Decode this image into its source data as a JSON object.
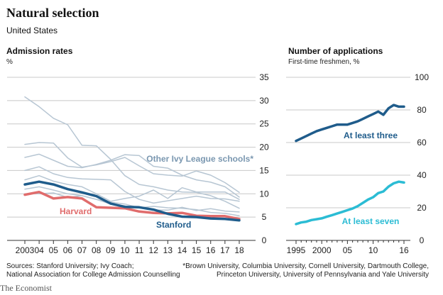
{
  "header": {
    "title": "Natural selection",
    "subtitle": "United States"
  },
  "left_panel": {
    "title": "Admission rates",
    "unit": "%"
  },
  "right_panel": {
    "title": "Number of applications",
    "unit": "First-time freshmen, %"
  },
  "footer": {
    "sources_line1": "Sources: Stanford University; Ivy Coach;",
    "sources_line2": "National Association for College Admission Counselling",
    "note_line1": "*Brown University, Columbia University, Cornell University, Dartmouth College,",
    "note_line2": "Princeton University, University of Pennsylvania and Yale University",
    "brand": "The Economist"
  },
  "colors": {
    "stanford": "#1f5c8b",
    "harvard": "#e06c6c",
    "ivy": "#b7c6d3",
    "ivy_label": "#7a97b0",
    "at_least_three": "#1f5c8b",
    "at_least_seven": "#2bbcd4",
    "grid": "#c8c8c8",
    "axis": "#333333"
  },
  "chart_data": [
    {
      "type": "line",
      "title": "Admission rates",
      "ylabel": "%",
      "x": [
        2003,
        2004,
        2005,
        2006,
        2007,
        2008,
        2009,
        2010,
        2011,
        2012,
        2013,
        2014,
        2015,
        2016,
        2017,
        2018
      ],
      "x_tick_labels": [
        "2003",
        "04",
        "05",
        "06",
        "07",
        "08",
        "09",
        "10",
        "11",
        "12",
        "13",
        "14",
        "15",
        "16",
        "17",
        "18"
      ],
      "ylim": [
        0,
        35
      ],
      "y_ticks": [
        0,
        5,
        10,
        15,
        20,
        25,
        30,
        35
      ],
      "grid": true,
      "series": [
        {
          "name": "Stanford",
          "label": "Stanford",
          "highlight": "stanford",
          "values": [
            12.0,
            12.6,
            12.0,
            11.0,
            10.3,
            9.5,
            7.9,
            7.2,
            7.1,
            6.6,
            5.7,
            5.1,
            5.0,
            4.7,
            4.6,
            4.3
          ]
        },
        {
          "name": "Harvard",
          "label": "Harvard",
          "highlight": "harvard",
          "values": [
            9.8,
            10.4,
            9.0,
            9.3,
            9.0,
            7.1,
            7.0,
            6.9,
            6.2,
            5.9,
            5.8,
            5.9,
            5.3,
            5.2,
            5.2,
            4.6
          ]
        },
        {
          "name": "Other Ivy League schools*",
          "label": "Other Ivy League schools*",
          "highlight": "ivy",
          "values": [
            30.8,
            28.7,
            26.2,
            24.8,
            20.4,
            20.3,
            17.4,
            13.9,
            12.0,
            11.5,
            10.8,
            10.4,
            10.3,
            9.6,
            8.4,
            6.9
          ]
        },
        {
          "highlight": "ivy",
          "values": [
            20.6,
            21.0,
            20.9,
            17.7,
            15.7,
            16.2,
            16.9,
            17.8,
            16.0,
            14.3,
            14.0,
            13.8,
            14.9,
            14.0,
            12.4,
            10.3
          ]
        },
        {
          "highlight": "ivy",
          "values": [
            17.8,
            18.5,
            17.2,
            15.9,
            15.6,
            16.3,
            17.2,
            18.4,
            18.2,
            15.9,
            15.5,
            14.0,
            13.0,
            12.5,
            11.5,
            9.3
          ]
        },
        {
          "highlight": "ivy",
          "values": [
            15.0,
            15.8,
            14.3,
            13.5,
            13.2,
            13.1,
            13.0,
            10.5,
            8.8,
            8.0,
            8.5,
            9.0,
            9.5,
            9.0,
            8.9,
            8.4
          ]
        },
        {
          "highlight": "ivy",
          "values": [
            13.0,
            13.9,
            12.7,
            12.0,
            11.5,
            10.0,
            8.4,
            9.0,
            9.5,
            10.8,
            9.0,
            11.3,
            10.4,
            10.4,
            10.4,
            8.8
          ]
        },
        {
          "highlight": "ivy",
          "values": [
            11.0,
            11.5,
            10.8,
            10.0,
            9.6,
            8.8,
            8.2,
            7.8,
            7.0,
            7.3,
            7.0,
            6.9,
            6.6,
            6.0,
            5.8,
            5.3
          ]
        },
        {
          "highlight": "ivy",
          "values": [
            10.0,
            10.0,
            10.2,
            9.2,
            9.6,
            8.8,
            7.8,
            7.4,
            7.0,
            6.5,
            6.5,
            7.1,
            6.4,
            6.8,
            6.3,
            6.1
          ]
        }
      ]
    },
    {
      "type": "line",
      "title": "Number of applications",
      "subtitle": "First-time freshmen, %",
      "x_tick_labels": [
        "1995",
        "2000",
        "05",
        "10",
        "16"
      ],
      "x_ticks": [
        1995,
        2000,
        2005,
        2010,
        2016
      ],
      "xlim": [
        1995,
        2016
      ],
      "ylim": [
        0,
        100
      ],
      "y_ticks": [
        0,
        20,
        40,
        60,
        80,
        100
      ],
      "grid": true,
      "series": [
        {
          "name": "At least three",
          "label": "At least three",
          "highlight": "at_least_three",
          "x": [
            1995,
            1996,
            1997,
            1998,
            1999,
            2000,
            2001,
            2002,
            2003,
            2004,
            2005,
            2006,
            2007,
            2008,
            2009,
            2010,
            2011,
            2012,
            2013,
            2014,
            2015,
            2016
          ],
          "values": [
            61,
            62.5,
            64,
            65.5,
            67,
            68,
            69,
            70,
            71,
            71,
            71,
            72,
            73,
            74.5,
            76,
            77.5,
            79,
            77,
            81,
            83,
            82,
            82
          ]
        },
        {
          "name": "At least seven",
          "label": "At least seven",
          "highlight": "at_least_seven",
          "x": [
            1995,
            1996,
            1997,
            1998,
            1999,
            2000,
            2001,
            2002,
            2003,
            2004,
            2005,
            2006,
            2007,
            2008,
            2009,
            2010,
            2011,
            2012,
            2013,
            2014,
            2015,
            2016
          ],
          "values": [
            10,
            11,
            11.5,
            12.5,
            13,
            13.5,
            14.5,
            15.5,
            16.5,
            17.5,
            18.5,
            19.5,
            21,
            23,
            25,
            26.5,
            29,
            30,
            33,
            35,
            36,
            35.5
          ]
        }
      ]
    }
  ]
}
